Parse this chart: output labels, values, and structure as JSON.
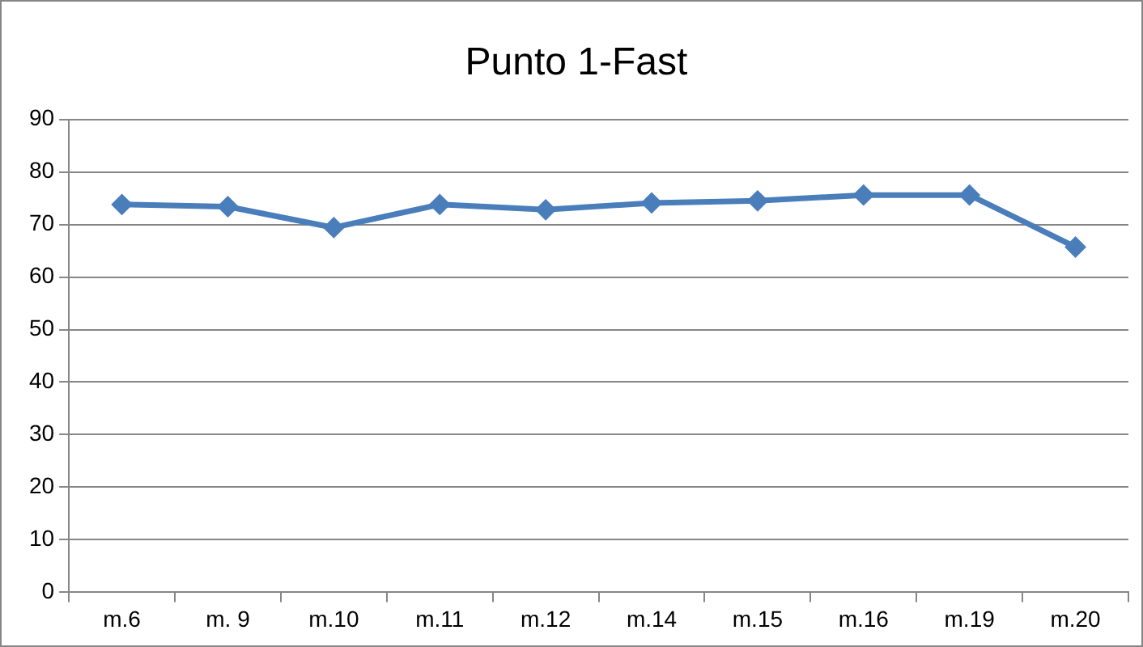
{
  "chart_data": {
    "type": "line",
    "title": "Punto 1-Fast",
    "categories": [
      "m.6",
      "m. 9",
      "m.10",
      "m.11",
      "m.12",
      "m.14",
      "m.15",
      "m.16",
      "m.19",
      "m.20"
    ],
    "series": [
      {
        "color": "#4a7ebb",
        "values": [
          73.8,
          73.4,
          69.4,
          73.8,
          72.8,
          74.1,
          74.5,
          75.6,
          75.6,
          65.7
        ]
      }
    ],
    "ylim": [
      0,
      90
    ],
    "yticks": [
      0,
      10,
      20,
      30,
      40,
      50,
      60,
      70,
      80,
      90
    ],
    "grid": "y",
    "legend": false,
    "marker": "diamond",
    "line_style": "solid"
  }
}
